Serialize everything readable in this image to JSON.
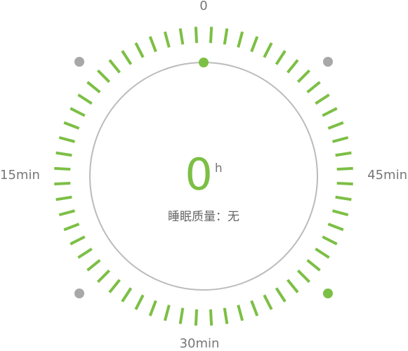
{
  "dial": {
    "labels": {
      "top": "0",
      "right": "45min",
      "bottom": "30min",
      "left": "15min"
    },
    "tick_count": 60,
    "colors": {
      "accent": "#7cbf45",
      "marker_inactive": "#a8a8a8",
      "inner_ring": "#bbbbbb"
    }
  },
  "center": {
    "hours": "0",
    "unit": "h",
    "quality_label": "睡眠质量",
    "quality_separator": "：",
    "quality_value": "无"
  }
}
